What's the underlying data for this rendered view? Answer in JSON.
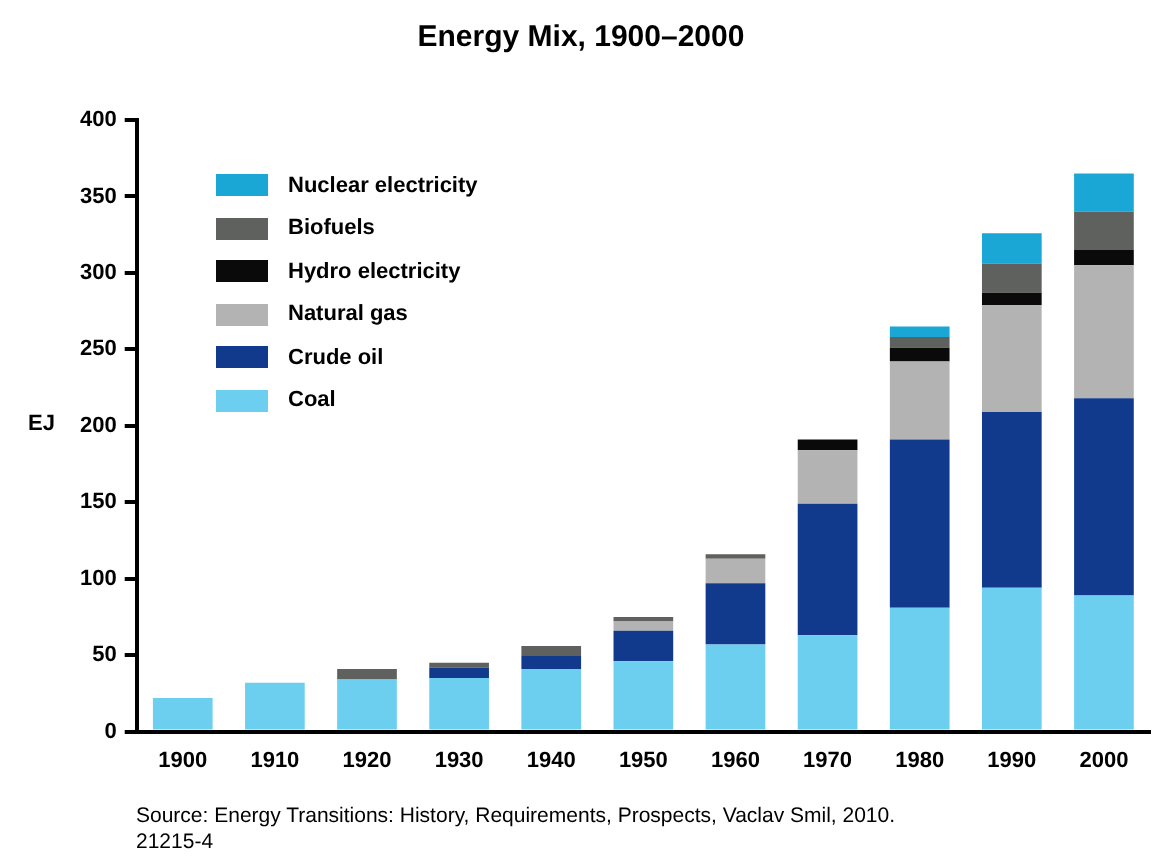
{
  "chart_data": {
    "type": "bar",
    "title": "Energy Mix, 1900–2000",
    "ylabel": "EJ",
    "stacked": true,
    "grid": false,
    "legend": "top left",
    "categories": [
      "1900",
      "1910",
      "1920",
      "1930",
      "1940",
      "1950",
      "1960",
      "1970",
      "1980",
      "1990",
      "2000"
    ],
    "series": [
      {
        "name": "Coal",
        "color": "#6dcff0",
        "values": [
          22,
          32,
          34,
          35,
          41,
          46,
          57,
          63,
          81,
          94,
          89
        ]
      },
      {
        "name": "Crude oil",
        "color": "#123a8c",
        "values": [
          null,
          null,
          null,
          7,
          9,
          20,
          40,
          86,
          110,
          115,
          129
        ]
      },
      {
        "name": "Natural gas",
        "color": "#b3b3b3",
        "values": [
          null,
          null,
          null,
          null,
          null,
          6,
          16,
          35,
          51,
          70,
          87
        ]
      },
      {
        "name": "Hydro electricity",
        "color": "#0a0a0a",
        "values": [
          null,
          null,
          null,
          null,
          null,
          null,
          null,
          7,
          9,
          8,
          10
        ]
      },
      {
        "name": "Biofuels",
        "color": "#5f615e",
        "values": [
          null,
          null,
          7,
          3,
          6,
          3,
          3,
          null,
          7,
          19,
          25
        ]
      },
      {
        "name": "Nuclear electricity",
        "color": "#1aa7d6",
        "values": [
          null,
          null,
          null,
          null,
          null,
          null,
          null,
          null,
          7,
          20,
          25
        ]
      }
    ],
    "ylim": [
      0,
      400
    ],
    "yticks": [
      0,
      50,
      100,
      150,
      200,
      250,
      300,
      350,
      400
    ],
    "annotations": [
      "Source: Energy Transitions: History, Requirements, Prospects, Vaclav Smil, 2010.",
      "21215-4"
    ]
  }
}
